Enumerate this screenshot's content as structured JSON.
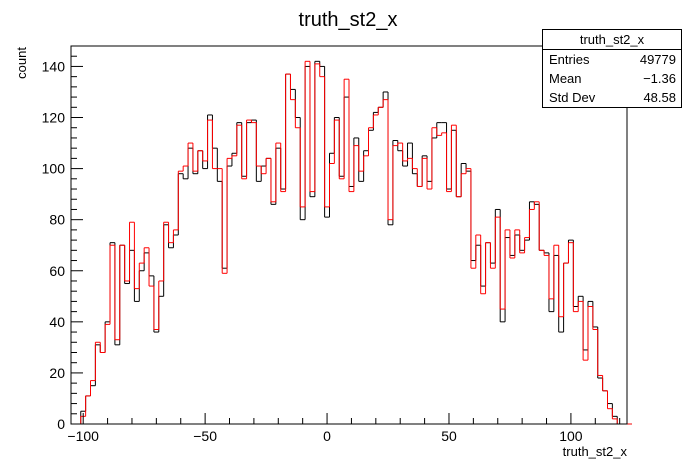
{
  "chart_data": {
    "type": "histogram",
    "title": "truth_st2_x",
    "xlabel": "truth_st2_x",
    "ylabel": "count",
    "xlim": [
      -105,
      123
    ],
    "ylim": [
      0,
      148
    ],
    "x_ticks": [
      -100,
      -50,
      0,
      50,
      100
    ],
    "y_ticks": [
      0,
      20,
      40,
      60,
      80,
      100,
      120,
      140
    ],
    "bin_width": 2,
    "bin_start": -105,
    "series": [
      {
        "color": "#000000",
        "values": [
          0,
          0,
          5,
          11,
          15,
          31,
          28,
          40,
          71,
          31,
          70,
          55,
          68,
          48,
          60,
          67,
          58,
          36,
          50,
          78,
          69,
          74,
          98,
          96,
          108,
          98,
          107,
          100,
          121,
          108,
          95,
          61,
          101,
          106,
          118,
          97,
          118,
          119,
          95,
          101,
          104,
          86,
          108,
          92,
          137,
          131,
          120,
          80,
          140,
          89,
          142,
          140,
          81,
          106,
          120,
          97,
          128,
          93,
          112,
          95,
          107,
          115,
          122,
          124,
          130,
          78,
          111,
          107,
          101,
          110,
          98,
          93,
          105,
          95,
          112,
          118,
          118,
          92,
          115,
          89,
          102,
          99,
          64,
          70,
          54,
          71,
          63,
          84,
          40,
          73,
          66,
          74,
          68,
          72,
          87,
          86,
          68,
          67,
          44,
          66,
          36,
          63,
          72,
          46,
          50,
          29,
          48,
          38,
          18,
          13,
          8,
          3,
          0,
          0,
          0
        ]
      },
      {
        "color": "#ff0000",
        "values": [
          0,
          0,
          3,
          11,
          17,
          32,
          28,
          39,
          70,
          33,
          70,
          56,
          79,
          53,
          63,
          69,
          54,
          37,
          56,
          79,
          71,
          76,
          99,
          101,
          110,
          99,
          107,
          103,
          119,
          100,
          100,
          59,
          104,
          105,
          117,
          96,
          119,
          118,
          101,
          98,
          104,
          87,
          110,
          91,
          137,
          127,
          116,
          85,
          142,
          91,
          141,
          136,
          85,
          102,
          119,
          96,
          135,
          91,
          109,
          99,
          105,
          116,
          121,
          124,
          127,
          80,
          109,
          110,
          103,
          104,
          100,
          93,
          104,
          92,
          116,
          113,
          114,
          91,
          117,
          89,
          98,
          100,
          61,
          74,
          51,
          71,
          61,
          81,
          45,
          76,
          65,
          76,
          67,
          73,
          84,
          87,
          68,
          66,
          49,
          70,
          42,
          63,
          71,
          44,
          48,
          25,
          46,
          37,
          19,
          13,
          6,
          2,
          0,
          0,
          0
        ]
      }
    ],
    "stats": {
      "title": "truth_st2_x",
      "entries_label": "Entries",
      "entries": "49779",
      "mean_label": "Mean",
      "mean": "−1.36",
      "stddev_label": "Std Dev",
      "stddev": "48.58"
    }
  }
}
